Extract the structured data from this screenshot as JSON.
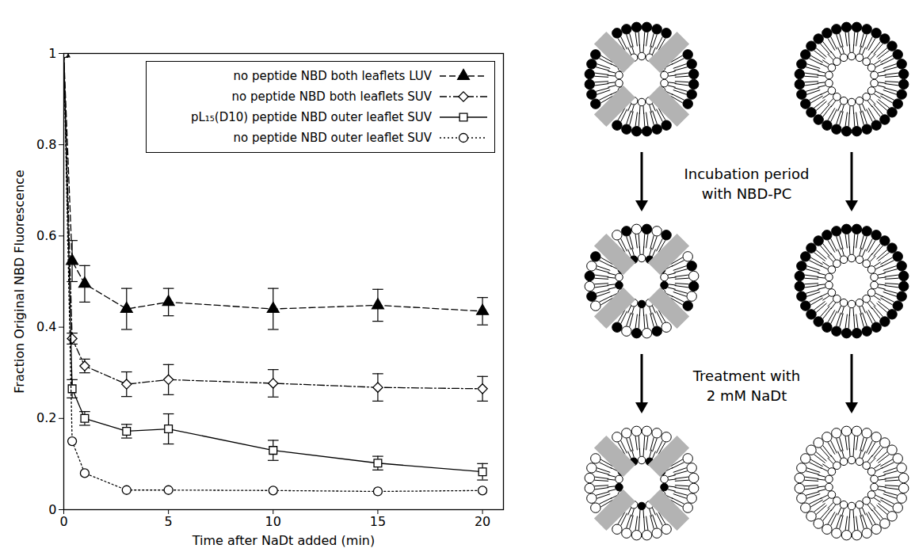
{
  "chart_data": {
    "type": "line",
    "x_label": "Time after NaDt added (min)",
    "y_label": "Fraction Original NBD Fluorescence",
    "x": [
      0,
      0.4,
      1,
      3,
      5,
      10,
      15,
      20
    ],
    "xlim": [
      0,
      21
    ],
    "xticks": [
      0,
      5,
      10,
      15,
      20
    ],
    "ylim": [
      0,
      1
    ],
    "yticks": [
      0,
      0.2,
      0.4,
      0.6,
      0.8,
      1
    ],
    "grid": false,
    "legend": "top-right",
    "series": [
      {
        "name": "no peptide NBD both leaflets LUV",
        "color": "#000000",
        "marker": "filled_triangle",
        "line_style": "dashed",
        "values": [
          1,
          0.545,
          0.495,
          0.44,
          0.455,
          0.44,
          0.448,
          0.435
        ],
        "errors": [
          0,
          0.045,
          0.04,
          0.045,
          0.03,
          0.045,
          0.035,
          0.03
        ]
      },
      {
        "name": "no peptide NBD both leaflets SUV",
        "color": "#000000",
        "marker": "open_diamond",
        "line_style": "dashdot",
        "values": [
          1,
          0.375,
          0.315,
          0.275,
          0.285,
          0.277,
          0.268,
          0.265
        ],
        "errors": [
          0,
          0.012,
          0.015,
          0.027,
          0.033,
          0.03,
          0.03,
          0.027
        ]
      },
      {
        "name": "pL₁₅(D10) peptide NBD outer leaflet SUV",
        "color": "#000000",
        "marker": "open_square",
        "line_style": "solid",
        "values": [
          1,
          0.265,
          0.2,
          0.172,
          0.177,
          0.13,
          0.102,
          0.083
        ],
        "errors": [
          0,
          0.02,
          0.015,
          0.015,
          0.033,
          0.022,
          0.015,
          0.018
        ]
      },
      {
        "name": "no peptide NBD outer leaflet SUV",
        "color": "#000000",
        "marker": "open_circle",
        "line_style": "dotted",
        "values": [
          1,
          0.15,
          0.08,
          0.043,
          0.043,
          0.042,
          0.04,
          0.042
        ],
        "errors": [
          0,
          0,
          0,
          0,
          0,
          0,
          0,
          0
        ]
      }
    ]
  },
  "diagram": {
    "captions": [
      "Incubation period with NBD-PC",
      "Treatment with 2 mM NaDt"
    ]
  }
}
